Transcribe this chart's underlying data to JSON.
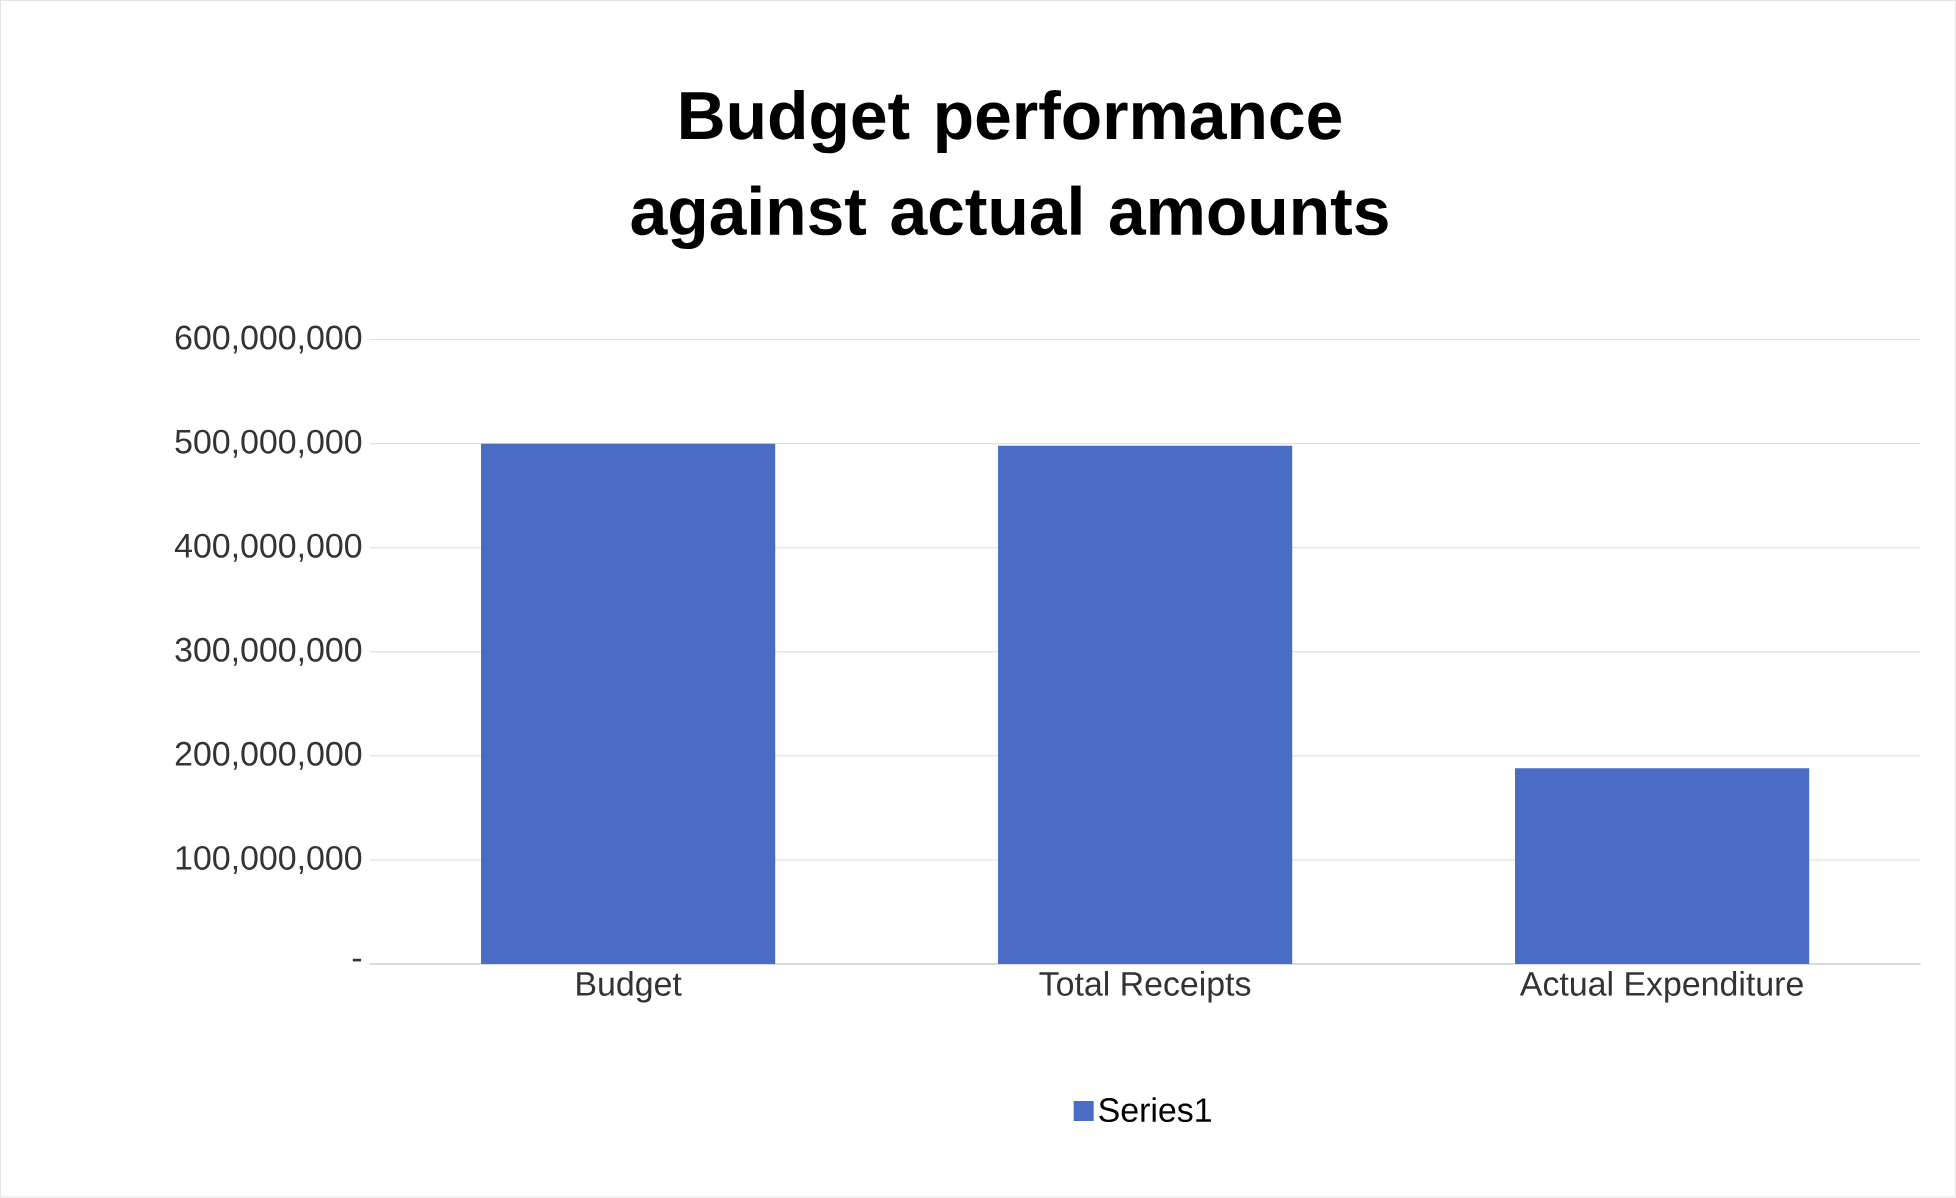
{
  "chart_data": {
    "type": "bar",
    "title": "Budget performance against actual amounts",
    "categories": [
      "Budget",
      "Total Receipts",
      "Actual Expenditure"
    ],
    "series": [
      {
        "name": "Series1",
        "color": "#4a6cc4",
        "values": [
          500000000,
          498000000,
          188000000
        ]
      }
    ],
    "ylim": [
      0,
      600000000
    ],
    "yticks": [
      {
        "value": 0,
        "label": "-"
      },
      {
        "value": 100000000,
        "label": "100,000,000"
      },
      {
        "value": 200000000,
        "label": "200,000,000"
      },
      {
        "value": 300000000,
        "label": "300,000,000"
      },
      {
        "value": 400000000,
        "label": "400,000,000"
      },
      {
        "value": 500000000,
        "label": "500,000,000"
      },
      {
        "value": 600000000,
        "label": "600,000,000"
      }
    ],
    "grid": "y",
    "legend": "bottom"
  }
}
